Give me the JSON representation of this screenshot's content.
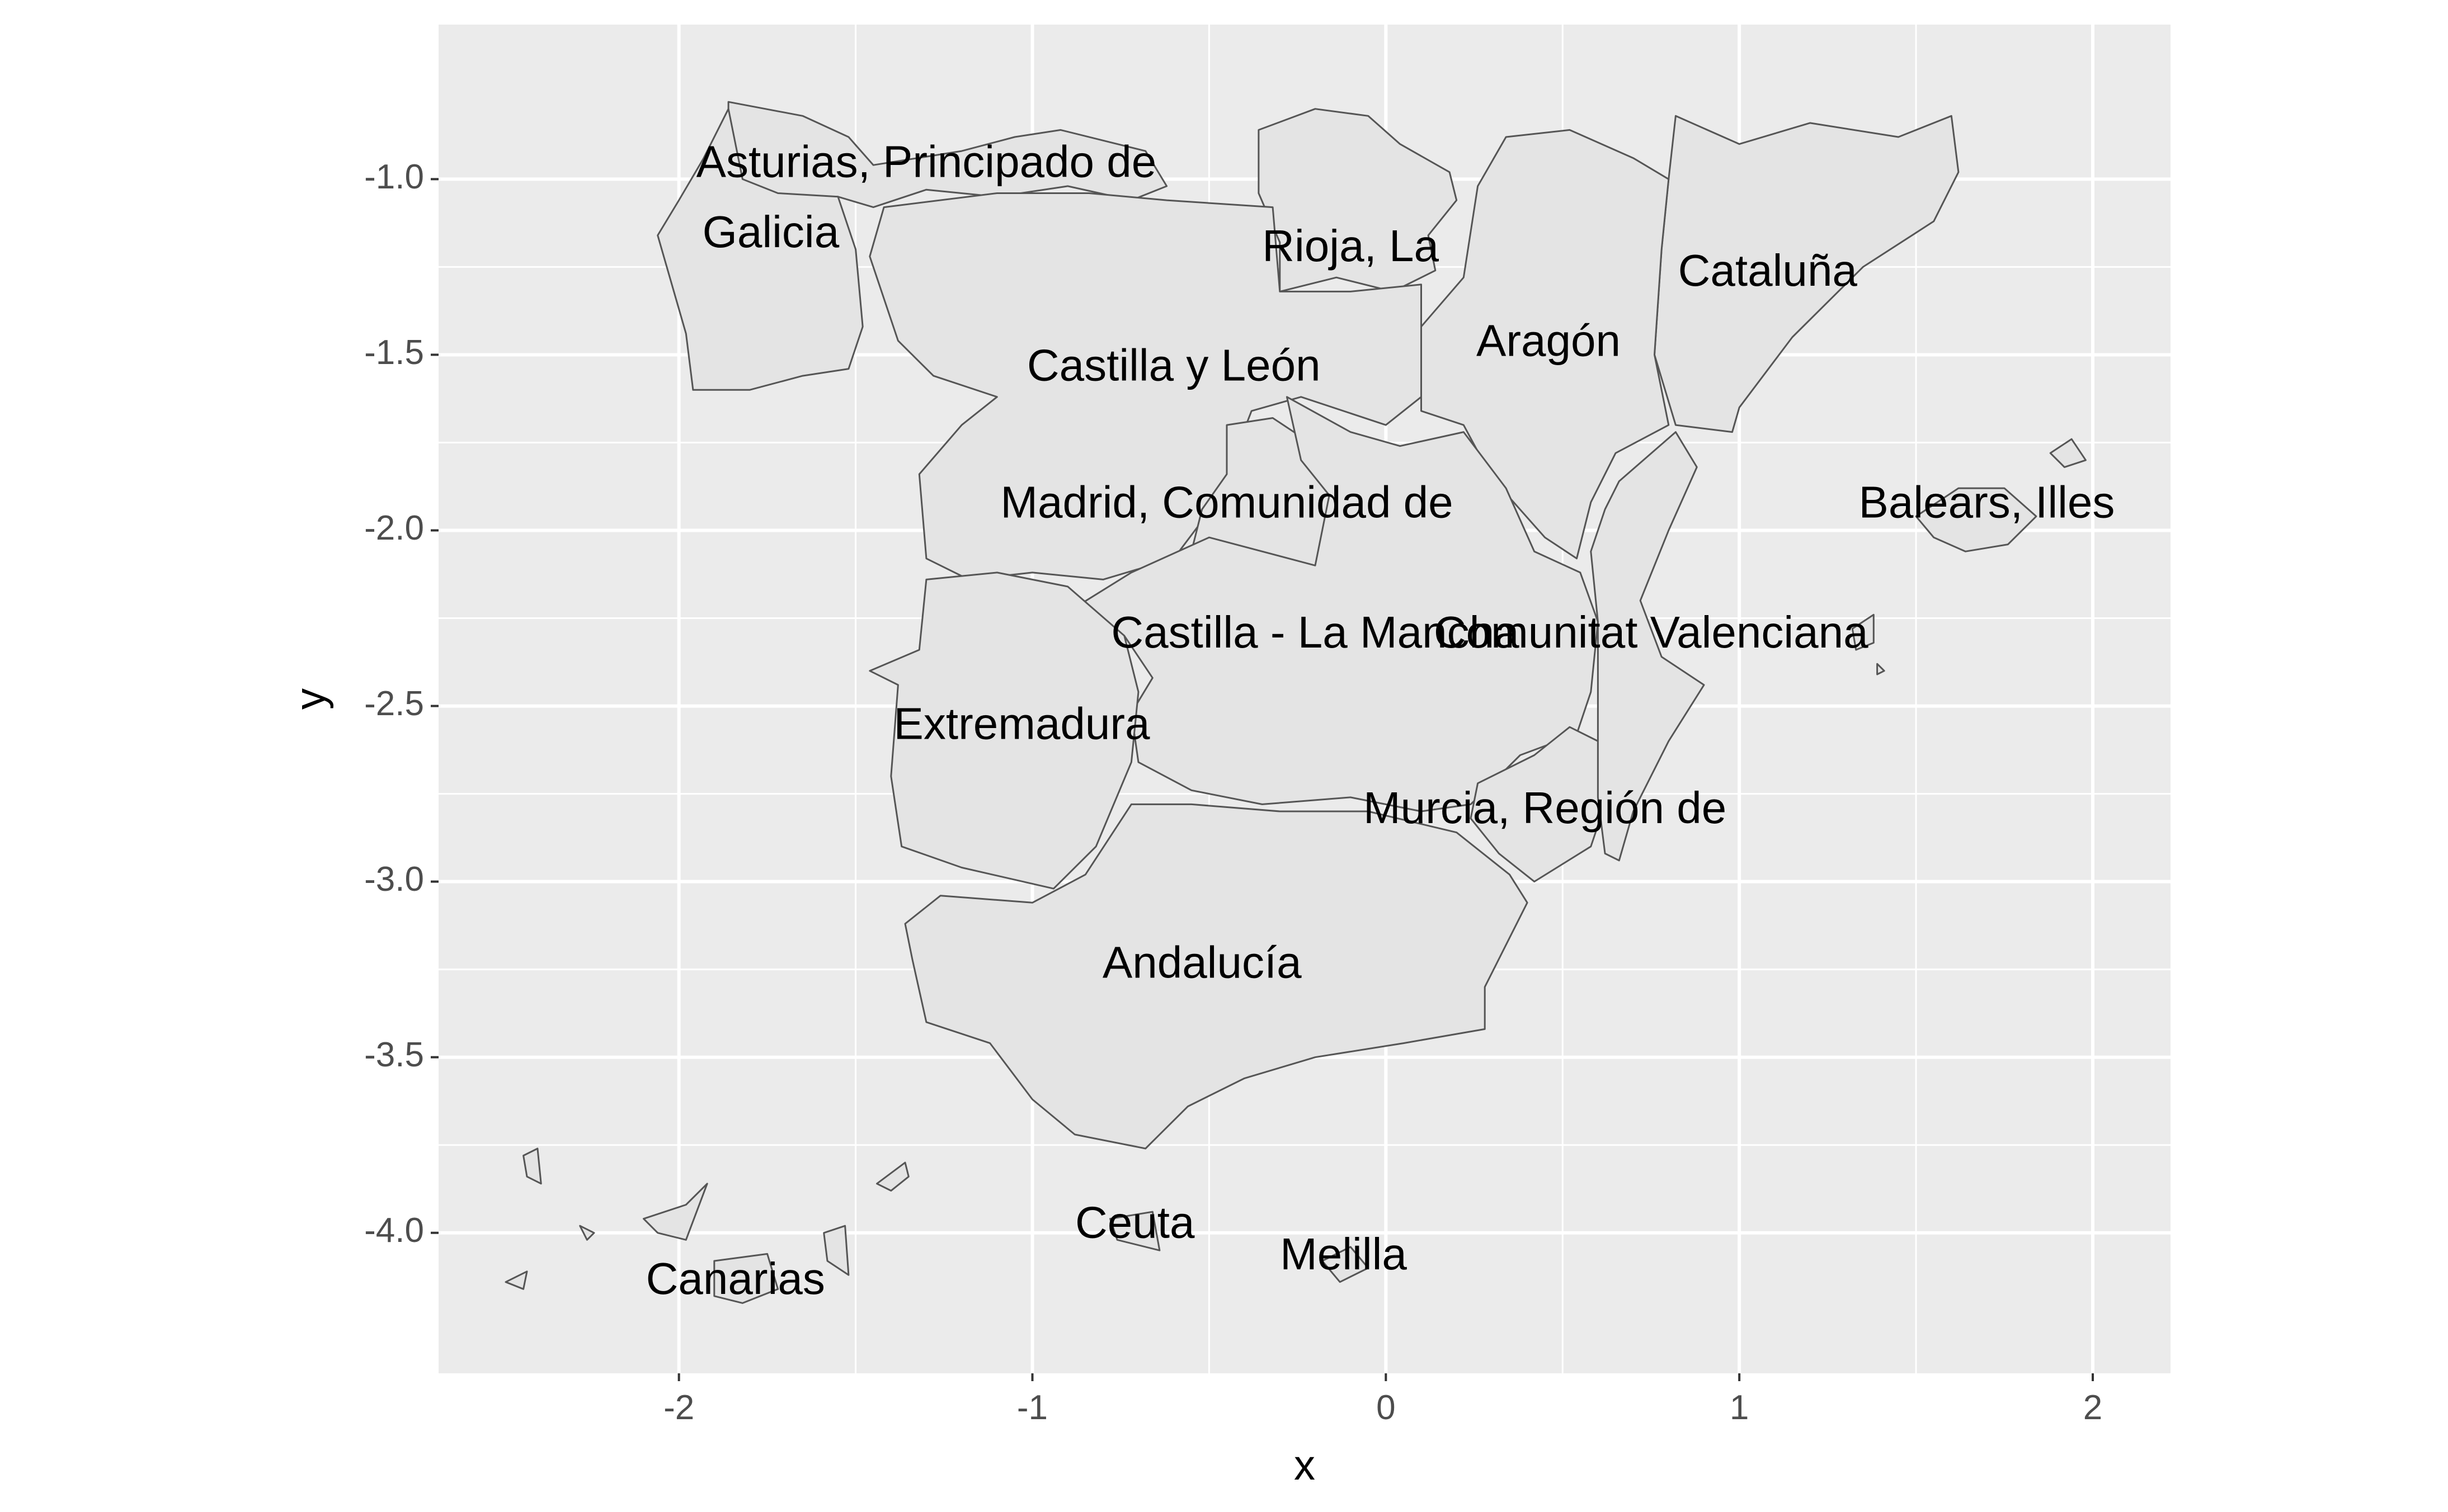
{
  "chart_data": {
    "type": "map",
    "xlabel": "x",
    "ylabel": "y",
    "xlim": [
      -2.68,
      2.22
    ],
    "ylim": [
      -4.4,
      -0.56
    ],
    "x_ticks": [
      -2,
      -1,
      0,
      1,
      2
    ],
    "y_ticks": [
      -1.0,
      -1.5,
      -2.0,
      -2.5,
      -3.0,
      -3.5,
      -4.0
    ],
    "x_tick_labels": [
      "-2",
      "-1",
      "0",
      "1",
      "2"
    ],
    "y_tick_labels": [
      "-1.0",
      "-1.5",
      "-2.0",
      "-2.5",
      "-3.0",
      "-3.5",
      "-4.0"
    ],
    "grid": true,
    "colors": {
      "panel": "#ebebeb",
      "grid": "#ffffff",
      "region_fill": "#e4e4e4",
      "region_border": "#555555"
    },
    "regions": [
      {
        "name": "Asturias, Principado de",
        "label_x": -1.3,
        "label_y": -0.96,
        "outline": [
          [
            -1.86,
            -0.78
          ],
          [
            -1.65,
            -0.82
          ],
          [
            -1.52,
            -0.88
          ],
          [
            -1.45,
            -0.96
          ],
          [
            -1.2,
            -0.92
          ],
          [
            -1.05,
            -0.88
          ],
          [
            -0.92,
            -0.86
          ],
          [
            -0.68,
            -0.92
          ],
          [
            -0.62,
            -1.02
          ],
          [
            -0.72,
            -1.06
          ],
          [
            -0.9,
            -1.02
          ],
          [
            -1.1,
            -1.05
          ],
          [
            -1.3,
            -1.03
          ],
          [
            -1.45,
            -1.08
          ],
          [
            -1.55,
            -1.05
          ],
          [
            -1.75,
            -1.06
          ],
          [
            -1.86,
            -1.0
          ]
        ]
      },
      {
        "name": "Galicia",
        "label_x": -1.74,
        "label_y": -1.16,
        "outline": [
          [
            -1.93,
            -0.94
          ],
          [
            -1.86,
            -0.8
          ],
          [
            -1.82,
            -1.0
          ],
          [
            -1.72,
            -1.04
          ],
          [
            -1.55,
            -1.05
          ],
          [
            -1.5,
            -1.2
          ],
          [
            -1.48,
            -1.42
          ],
          [
            -1.52,
            -1.54
          ],
          [
            -1.65,
            -1.56
          ],
          [
            -1.8,
            -1.6
          ],
          [
            -1.96,
            -1.6
          ],
          [
            -1.98,
            -1.44
          ],
          [
            -2.02,
            -1.3
          ],
          [
            -2.06,
            -1.16
          ],
          [
            -2.0,
            -1.06
          ]
        ]
      },
      {
        "name": "Rioja, La",
        "label_x": -0.1,
        "label_y": -1.2,
        "outline": [
          [
            -0.36,
            -0.86
          ],
          [
            -0.2,
            -0.8
          ],
          [
            -0.05,
            -0.82
          ],
          [
            0.04,
            -0.9
          ],
          [
            0.18,
            -0.98
          ],
          [
            0.2,
            -1.06
          ],
          [
            0.12,
            -1.16
          ],
          [
            0.14,
            -1.26
          ],
          [
            0.02,
            -1.32
          ],
          [
            -0.14,
            -1.28
          ],
          [
            -0.3,
            -1.32
          ],
          [
            -0.3,
            -1.18
          ],
          [
            -0.36,
            -1.04
          ]
        ]
      },
      {
        "name": "Cataluña",
        "label_x": 1.08,
        "label_y": -1.27,
        "outline": [
          [
            0.82,
            -0.82
          ],
          [
            1.0,
            -0.9
          ],
          [
            1.2,
            -0.84
          ],
          [
            1.45,
            -0.88
          ],
          [
            1.6,
            -0.82
          ],
          [
            1.62,
            -0.98
          ],
          [
            1.55,
            -1.12
          ],
          [
            1.35,
            -1.25
          ],
          [
            1.15,
            -1.45
          ],
          [
            1.0,
            -1.65
          ],
          [
            0.98,
            -1.72
          ],
          [
            0.82,
            -1.7
          ],
          [
            0.76,
            -1.5
          ],
          [
            0.78,
            -1.2
          ],
          [
            0.8,
            -1.0
          ]
        ]
      },
      {
        "name": "Aragón",
        "label_x": 0.46,
        "label_y": -1.47,
        "outline": [
          [
            0.34,
            -0.88
          ],
          [
            0.52,
            -0.86
          ],
          [
            0.7,
            -0.94
          ],
          [
            0.8,
            -1.0
          ],
          [
            0.78,
            -1.2
          ],
          [
            0.76,
            -1.5
          ],
          [
            0.8,
            -1.7
          ],
          [
            0.65,
            -1.78
          ],
          [
            0.58,
            -1.92
          ],
          [
            0.54,
            -2.08
          ],
          [
            0.45,
            -2.02
          ],
          [
            0.3,
            -1.85
          ],
          [
            0.22,
            -1.7
          ],
          [
            0.1,
            -1.66
          ],
          [
            0.1,
            -1.42
          ],
          [
            0.22,
            -1.28
          ],
          [
            0.26,
            -1.02
          ]
        ]
      },
      {
        "name": "Castilla y León",
        "label_x": -0.6,
        "label_y": -1.54,
        "outline": [
          [
            -1.42,
            -1.08
          ],
          [
            -1.1,
            -1.04
          ],
          [
            -0.84,
            -1.04
          ],
          [
            -0.62,
            -1.06
          ],
          [
            -0.32,
            -1.08
          ],
          [
            -0.3,
            -1.32
          ],
          [
            -0.1,
            -1.32
          ],
          [
            0.1,
            -1.3
          ],
          [
            0.1,
            -1.62
          ],
          [
            0.0,
            -1.7
          ],
          [
            -0.24,
            -1.62
          ],
          [
            -0.38,
            -1.66
          ],
          [
            -0.48,
            -1.92
          ],
          [
            -0.6,
            -2.08
          ],
          [
            -0.8,
            -2.14
          ],
          [
            -1.0,
            -2.12
          ],
          [
            -1.18,
            -2.14
          ],
          [
            -1.3,
            -2.08
          ],
          [
            -1.32,
            -1.84
          ],
          [
            -1.2,
            -1.7
          ],
          [
            -1.1,
            -1.62
          ],
          [
            -1.28,
            -1.56
          ],
          [
            -1.38,
            -1.46
          ],
          [
            -1.46,
            -1.22
          ]
        ]
      },
      {
        "name": "Madrid, Comunidad de",
        "label_x": -0.45,
        "label_y": -1.93,
        "outline": [
          [
            -0.45,
            -1.7
          ],
          [
            -0.32,
            -1.68
          ],
          [
            -0.14,
            -1.8
          ],
          [
            -0.12,
            -1.96
          ],
          [
            -0.1,
            -2.08
          ],
          [
            -0.2,
            -2.12
          ],
          [
            -0.38,
            -2.1
          ],
          [
            -0.55,
            -2.06
          ],
          [
            -0.52,
            -1.94
          ],
          [
            -0.45,
            -1.84
          ]
        ]
      },
      {
        "name": "Castilla - La Mancha",
        "label_x": -0.2,
        "label_y": -2.3,
        "outline": [
          [
            -0.28,
            -1.62
          ],
          [
            -0.1,
            -1.72
          ],
          [
            0.04,
            -1.76
          ],
          [
            0.22,
            -1.72
          ],
          [
            0.34,
            -1.88
          ],
          [
            0.42,
            -2.06
          ],
          [
            0.55,
            -2.12
          ],
          [
            0.6,
            -2.26
          ],
          [
            0.58,
            -2.46
          ],
          [
            0.54,
            -2.58
          ],
          [
            0.38,
            -2.64
          ],
          [
            0.24,
            -2.78
          ],
          [
            0.1,
            -2.8
          ],
          [
            -0.1,
            -2.76
          ],
          [
            -0.35,
            -2.78
          ],
          [
            -0.55,
            -2.74
          ],
          [
            -0.7,
            -2.66
          ],
          [
            -0.72,
            -2.52
          ],
          [
            -0.66,
            -2.42
          ],
          [
            -0.74,
            -2.3
          ],
          [
            -0.88,
            -2.22
          ],
          [
            -0.72,
            -2.12
          ],
          [
            -0.5,
            -2.02
          ],
          [
            -0.2,
            -2.1
          ],
          [
            -0.16,
            -1.9
          ],
          [
            -0.24,
            -1.8
          ]
        ]
      },
      {
        "name": "Extremadura",
        "label_x": -1.03,
        "label_y": -2.56,
        "outline": [
          [
            -1.3,
            -2.14
          ],
          [
            -1.1,
            -2.12
          ],
          [
            -0.9,
            -2.16
          ],
          [
            -0.74,
            -2.3
          ],
          [
            -0.7,
            -2.46
          ],
          [
            -0.72,
            -2.66
          ],
          [
            -0.82,
            -2.9
          ],
          [
            -0.94,
            -3.02
          ],
          [
            -1.2,
            -2.96
          ],
          [
            -1.37,
            -2.9
          ],
          [
            -1.4,
            -2.7
          ],
          [
            -1.38,
            -2.44
          ],
          [
            -1.46,
            -2.4
          ],
          [
            -1.32,
            -2.34
          ]
        ]
      },
      {
        "name": "Murcia, Región de",
        "label_x": 0.45,
        "label_y": -2.8,
        "outline": [
          [
            0.26,
            -2.72
          ],
          [
            0.42,
            -2.64
          ],
          [
            0.52,
            -2.56
          ],
          [
            0.6,
            -2.6
          ],
          [
            0.62,
            -2.78
          ],
          [
            0.58,
            -2.9
          ],
          [
            0.42,
            -3.0
          ],
          [
            0.32,
            -2.92
          ],
          [
            0.24,
            -2.82
          ]
        ]
      },
      {
        "name": "Comunitat Valenciana",
        "label_x": 0.75,
        "label_y": -2.3,
        "outline": [
          [
            0.66,
            -1.86
          ],
          [
            0.82,
            -1.72
          ],
          [
            0.88,
            -1.82
          ],
          [
            0.8,
            -2.0
          ],
          [
            0.72,
            -2.2
          ],
          [
            0.78,
            -2.36
          ],
          [
            0.9,
            -2.44
          ],
          [
            0.8,
            -2.6
          ],
          [
            0.7,
            -2.8
          ],
          [
            0.66,
            -2.94
          ],
          [
            0.62,
            -2.92
          ],
          [
            0.6,
            -2.76
          ],
          [
            0.6,
            -2.5
          ],
          [
            0.6,
            -2.26
          ],
          [
            0.58,
            -2.06
          ],
          [
            0.62,
            -1.94
          ]
        ]
      },
      {
        "name": "Andalucía",
        "label_x": -0.52,
        "label_y": -3.24,
        "outline": [
          [
            -1.26,
            -3.04
          ],
          [
            -1.0,
            -3.06
          ],
          [
            -0.85,
            -2.98
          ],
          [
            -0.72,
            -2.78
          ],
          [
            -0.55,
            -2.78
          ],
          [
            -0.3,
            -2.8
          ],
          [
            -0.05,
            -2.8
          ],
          [
            0.2,
            -2.86
          ],
          [
            0.35,
            -2.98
          ],
          [
            0.4,
            -3.06
          ],
          [
            0.35,
            -3.16
          ],
          [
            0.28,
            -3.3
          ],
          [
            0.28,
            -3.42
          ],
          [
            0.05,
            -3.46
          ],
          [
            -0.2,
            -3.5
          ],
          [
            -0.4,
            -3.56
          ],
          [
            -0.56,
            -3.64
          ],
          [
            -0.68,
            -3.76
          ],
          [
            -0.88,
            -3.72
          ],
          [
            -1.0,
            -3.62
          ],
          [
            -1.12,
            -3.46
          ],
          [
            -1.3,
            -3.4
          ],
          [
            -1.34,
            -3.22
          ],
          [
            -1.36,
            -3.12
          ]
        ]
      },
      {
        "name": "Balears, Illes",
        "label_x": 1.7,
        "label_y": -1.93,
        "outline": [
          [
            1.5,
            -1.96
          ],
          [
            1.62,
            -1.88
          ],
          [
            1.75,
            -1.88
          ],
          [
            1.84,
            -1.96
          ],
          [
            1.76,
            -2.04
          ],
          [
            1.64,
            -2.06
          ],
          [
            1.55,
            -2.02
          ]
        ]
      },
      {
        "name": "Ceuta",
        "label_x": -0.71,
        "label_y": -3.98,
        "outline": [
          [
            -0.78,
            -3.96
          ],
          [
            -0.66,
            -3.94
          ],
          [
            -0.64,
            -4.05
          ],
          [
            -0.76,
            -4.02
          ]
        ]
      },
      {
        "name": "Melilla",
        "label_x": -0.12,
        "label_y": -4.07,
        "outline": [
          [
            -0.18,
            -4.08
          ],
          [
            -0.1,
            -4.04
          ],
          [
            -0.05,
            -4.1
          ],
          [
            -0.13,
            -4.14
          ]
        ]
      },
      {
        "name": "Canarias",
        "label_x": -1.84,
        "label_y": -4.14,
        "outline": [
          [
            -1.9,
            -4.08
          ],
          [
            -1.75,
            -4.06
          ],
          [
            -1.72,
            -4.16
          ],
          [
            -1.82,
            -4.2
          ],
          [
            -1.9,
            -4.18
          ]
        ]
      }
    ],
    "extra_outlines": [
      [
        [
          -2.44,
          -3.78
        ],
        [
          -2.4,
          -3.76
        ],
        [
          -2.39,
          -3.86
        ],
        [
          -2.43,
          -3.84
        ]
      ],
      [
        [
          -2.1,
          -3.96
        ],
        [
          -1.98,
          -3.92
        ],
        [
          -1.92,
          -3.86
        ],
        [
          -1.98,
          -4.02
        ],
        [
          -2.06,
          -4.0
        ]
      ],
      [
        [
          -2.28,
          -3.98
        ],
        [
          -2.26,
          -4.02
        ],
        [
          -2.24,
          -4.0
        ]
      ],
      [
        [
          -2.49,
          -4.14
        ],
        [
          -2.43,
          -4.11
        ],
        [
          -2.44,
          -4.16
        ]
      ],
      [
        [
          -1.59,
          -4.0
        ],
        [
          -1.53,
          -3.98
        ],
        [
          -1.52,
          -4.12
        ],
        [
          -1.58,
          -4.08
        ]
      ],
      [
        [
          -1.44,
          -3.86
        ],
        [
          -1.36,
          -3.8
        ],
        [
          -1.35,
          -3.84
        ],
        [
          -1.4,
          -3.88
        ]
      ],
      [
        [
          1.88,
          -1.78
        ],
        [
          1.94,
          -1.74
        ],
        [
          1.98,
          -1.8
        ],
        [
          1.92,
          -1.82
        ]
      ],
      [
        [
          1.32,
          -2.28
        ],
        [
          1.38,
          -2.24
        ],
        [
          1.38,
          -2.32
        ],
        [
          1.33,
          -2.34
        ]
      ],
      [
        [
          1.39,
          -2.38
        ],
        [
          1.41,
          -2.4
        ],
        [
          1.39,
          -2.41
        ]
      ]
    ]
  }
}
